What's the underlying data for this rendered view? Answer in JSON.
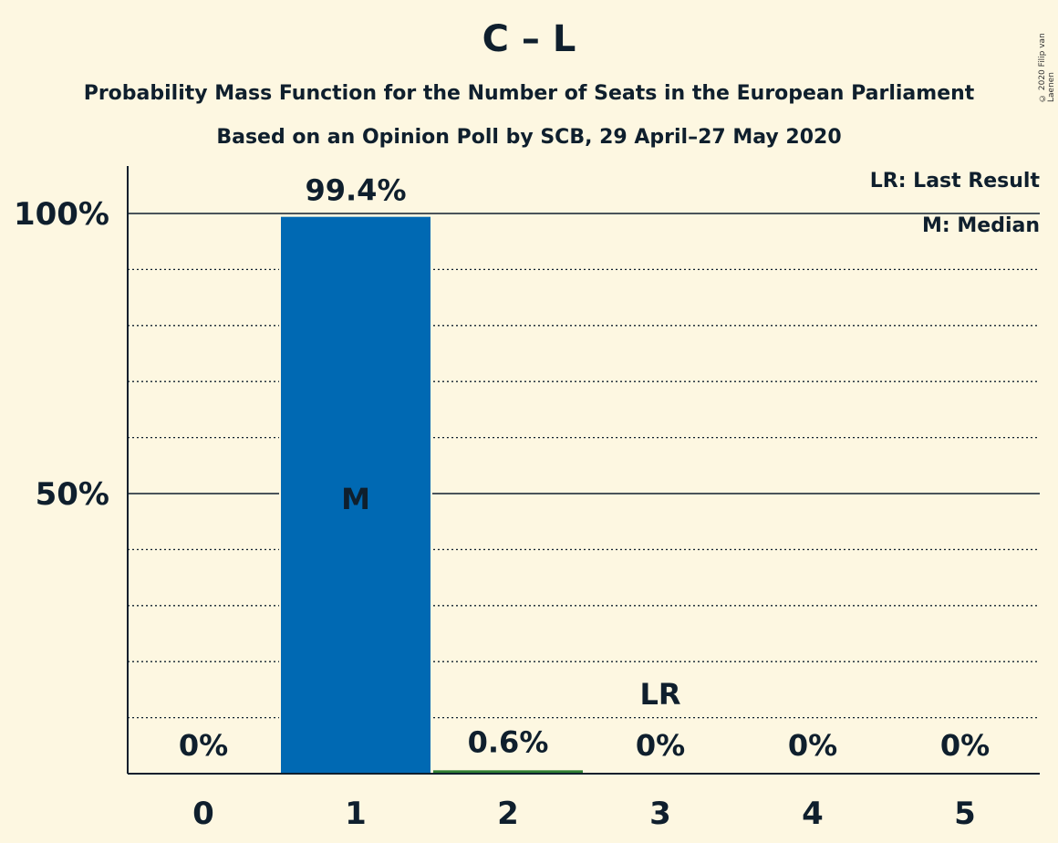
{
  "chart_data": {
    "type": "bar",
    "title": "C – L",
    "subtitle": "Probability Mass Function for the Number of Seats in the European Parliament",
    "subtitle2": "Based on an Opinion Poll by SCB, 29 April–27 May 2020",
    "copyright": "© 2020 Filip van Laenen",
    "categories": [
      "0",
      "1",
      "2",
      "3",
      "4",
      "5"
    ],
    "values": [
      0,
      99.4,
      0.6,
      0,
      0,
      0
    ],
    "value_labels": [
      "0%",
      "99.4%",
      "0.6%",
      "0%",
      "0%",
      "0%"
    ],
    "ylim": [
      0,
      100
    ],
    "y_ticks": [
      {
        "value": 50,
        "label": "50%"
      },
      {
        "value": 100,
        "label": "100%"
      }
    ],
    "y_minor_step": 10,
    "median_index": 1,
    "median_marker": "M",
    "last_result_index": 3,
    "last_result_marker": "LR",
    "legend": [
      "LR: Last Result",
      "M: Median"
    ],
    "legend_position": "top-right",
    "colors": {
      "median_bar": "#0069b3",
      "other_bar": "#2e7d32",
      "background": "#fdf7e1",
      "text": "#0f1f2d"
    }
  }
}
